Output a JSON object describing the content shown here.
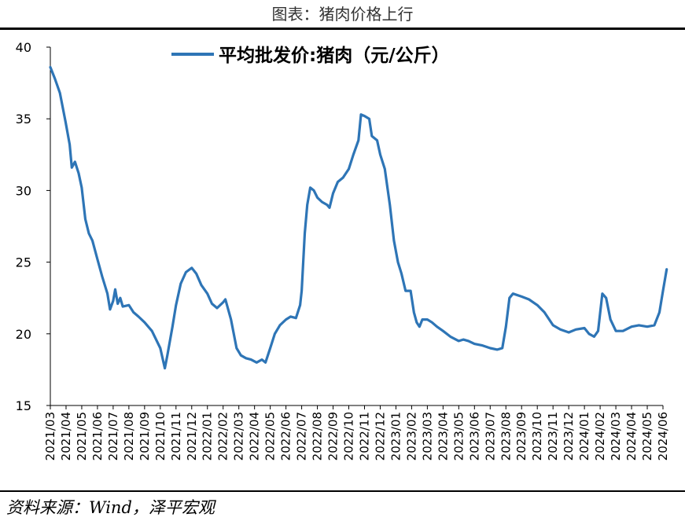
{
  "header": {
    "title": "图表：猪肉价格上行"
  },
  "footer": {
    "source": "资料来源：Wind，泽平宏观"
  },
  "chart_data": {
    "type": "line",
    "title": "",
    "xlabel": "",
    "ylabel": "",
    "ylim": [
      15,
      40
    ],
    "yticks": [
      15,
      20,
      25,
      30,
      35,
      40
    ],
    "x_categories": [
      "2021/03",
      "2021/04",
      "2021/05",
      "2021/06",
      "2021/07",
      "2021/08",
      "2021/09",
      "2021/10",
      "2021/11",
      "2021/12",
      "2022/01",
      "2022/02",
      "2022/03",
      "2022/04",
      "2022/05",
      "2022/06",
      "2022/07",
      "2022/08",
      "2022/09",
      "2022/10",
      "2022/11",
      "2022/12",
      "2023/01",
      "2023/02",
      "2023/03",
      "2023/04",
      "2023/05",
      "2023/06",
      "2023/07",
      "2023/08",
      "2023/09",
      "2023/10",
      "2023/11",
      "2023/12",
      "2024/01",
      "2024/02",
      "2024/03",
      "2024/04",
      "2024/05",
      "2024/06"
    ],
    "legend_position": "top-center",
    "grid": false,
    "series": [
      {
        "name": "平均批发价:猪肉（元/公斤）",
        "color": "#2e75b6",
        "points": [
          [
            "2021/03/01",
            38.6
          ],
          [
            "2021/03/10",
            37.8
          ],
          [
            "2021/03/20",
            36.8
          ],
          [
            "2021/03/31",
            34.8
          ],
          [
            "2021/04/08",
            33.2
          ],
          [
            "2021/04/12",
            31.6
          ],
          [
            "2021/04/18",
            32.0
          ],
          [
            "2021/04/25",
            31.2
          ],
          [
            "2021/05/01",
            30.2
          ],
          [
            "2021/05/08",
            28.0
          ],
          [
            "2021/05/15",
            27.0
          ],
          [
            "2021/05/22",
            26.5
          ],
          [
            "2021/06/01",
            25.2
          ],
          [
            "2021/06/10",
            24.0
          ],
          [
            "2021/06/20",
            22.8
          ],
          [
            "2021/06/25",
            21.7
          ],
          [
            "2021/07/01",
            22.3
          ],
          [
            "2021/07/05",
            23.1
          ],
          [
            "2021/07/10",
            22.1
          ],
          [
            "2021/07/15",
            22.5
          ],
          [
            "2021/07/20",
            21.9
          ],
          [
            "2021/08/01",
            22.0
          ],
          [
            "2021/08/10",
            21.5
          ],
          [
            "2021/08/20",
            21.2
          ],
          [
            "2021/09/01",
            20.8
          ],
          [
            "2021/09/15",
            20.2
          ],
          [
            "2021/10/01",
            19.0
          ],
          [
            "2021/10/10",
            17.6
          ],
          [
            "2021/10/15",
            18.5
          ],
          [
            "2021/10/25",
            20.5
          ],
          [
            "2021/11/01",
            22.0
          ],
          [
            "2021/11/10",
            23.5
          ],
          [
            "2021/11/20",
            24.3
          ],
          [
            "2021/12/01",
            24.6
          ],
          [
            "2021/12/10",
            24.2
          ],
          [
            "2021/12/20",
            23.4
          ],
          [
            "2022/01/01",
            22.8
          ],
          [
            "2022/01/10",
            22.1
          ],
          [
            "2022/01/20",
            21.8
          ],
          [
            "2022/02/01",
            22.2
          ],
          [
            "2022/02/05",
            22.4
          ],
          [
            "2022/02/15",
            21.0
          ],
          [
            "2022/02/25",
            19.0
          ],
          [
            "2022/03/05",
            18.5
          ],
          [
            "2022/03/15",
            18.3
          ],
          [
            "2022/03/25",
            18.2
          ],
          [
            "2022/04/05",
            18.0
          ],
          [
            "2022/04/15",
            18.2
          ],
          [
            "2022/04/22",
            18.0
          ],
          [
            "2022/05/01",
            19.0
          ],
          [
            "2022/05/10",
            20.0
          ],
          [
            "2022/05/20",
            20.6
          ],
          [
            "2022/06/01",
            21.0
          ],
          [
            "2022/06/10",
            21.2
          ],
          [
            "2022/06/20",
            21.1
          ],
          [
            "2022/06/28",
            22.0
          ],
          [
            "2022/07/01",
            23.0
          ],
          [
            "2022/07/07",
            27.0
          ],
          [
            "2022/07/12",
            29.0
          ],
          [
            "2022/07/18",
            30.2
          ],
          [
            "2022/07/25",
            30.0
          ],
          [
            "2022/08/01",
            29.5
          ],
          [
            "2022/08/10",
            29.2
          ],
          [
            "2022/08/20",
            29.0
          ],
          [
            "2022/08/25",
            28.8
          ],
          [
            "2022/09/01",
            29.8
          ],
          [
            "2022/09/10",
            30.6
          ],
          [
            "2022/09/20",
            30.9
          ],
          [
            "2022/10/01",
            31.5
          ],
          [
            "2022/10/10",
            32.5
          ],
          [
            "2022/10/20",
            33.5
          ],
          [
            "2022/10/25",
            35.3
          ],
          [
            "2022/11/01",
            35.2
          ],
          [
            "2022/11/10",
            35.0
          ],
          [
            "2022/11/15",
            33.8
          ],
          [
            "2022/11/25",
            33.5
          ],
          [
            "2022/12/01",
            32.5
          ],
          [
            "2022/12/10",
            31.5
          ],
          [
            "2022/12/20",
            29.0
          ],
          [
            "2022/12/28",
            26.5
          ],
          [
            "2023/01/05",
            25.0
          ],
          [
            "2023/01/12",
            24.2
          ],
          [
            "2023/01/20",
            23.0
          ],
          [
            "2023/01/30",
            23.0
          ],
          [
            "2023/02/05",
            21.5
          ],
          [
            "2023/02/10",
            20.8
          ],
          [
            "2023/02/15",
            20.5
          ],
          [
            "2023/02/20",
            21.0
          ],
          [
            "2023/03/01",
            21.0
          ],
          [
            "2023/03/10",
            20.8
          ],
          [
            "2023/03/20",
            20.5
          ],
          [
            "2023/04/01",
            20.2
          ],
          [
            "2023/04/15",
            19.8
          ],
          [
            "2023/05/01",
            19.5
          ],
          [
            "2023/05/10",
            19.6
          ],
          [
            "2023/05/20",
            19.5
          ],
          [
            "2023/06/01",
            19.3
          ],
          [
            "2023/06/15",
            19.2
          ],
          [
            "2023/07/01",
            19.0
          ],
          [
            "2023/07/15",
            18.9
          ],
          [
            "2023/07/25",
            19.0
          ],
          [
            "2023/08/01",
            20.5
          ],
          [
            "2023/08/08",
            22.5
          ],
          [
            "2023/08/15",
            22.8
          ],
          [
            "2023/09/01",
            22.6
          ],
          [
            "2023/09/15",
            22.4
          ],
          [
            "2023/10/01",
            22.0
          ],
          [
            "2023/10/15",
            21.5
          ],
          [
            "2023/11/01",
            20.6
          ],
          [
            "2023/11/15",
            20.3
          ],
          [
            "2023/12/01",
            20.1
          ],
          [
            "2023/12/15",
            20.3
          ],
          [
            "2024/01/01",
            20.4
          ],
          [
            "2024/01/10",
            20.0
          ],
          [
            "2024/01/20",
            19.8
          ],
          [
            "2024/01/28",
            20.2
          ],
          [
            "2024/02/05",
            22.8
          ],
          [
            "2024/02/12",
            22.5
          ],
          [
            "2024/02/20",
            21.0
          ],
          [
            "2024/03/01",
            20.2
          ],
          [
            "2024/03/15",
            20.2
          ],
          [
            "2024/04/01",
            20.5
          ],
          [
            "2024/04/15",
            20.6
          ],
          [
            "2024/05/01",
            20.5
          ],
          [
            "2024/05/15",
            20.6
          ],
          [
            "2024/05/25",
            21.5
          ],
          [
            "2024/06/01",
            23.0
          ],
          [
            "2024/06/08",
            24.5
          ]
        ]
      }
    ]
  }
}
